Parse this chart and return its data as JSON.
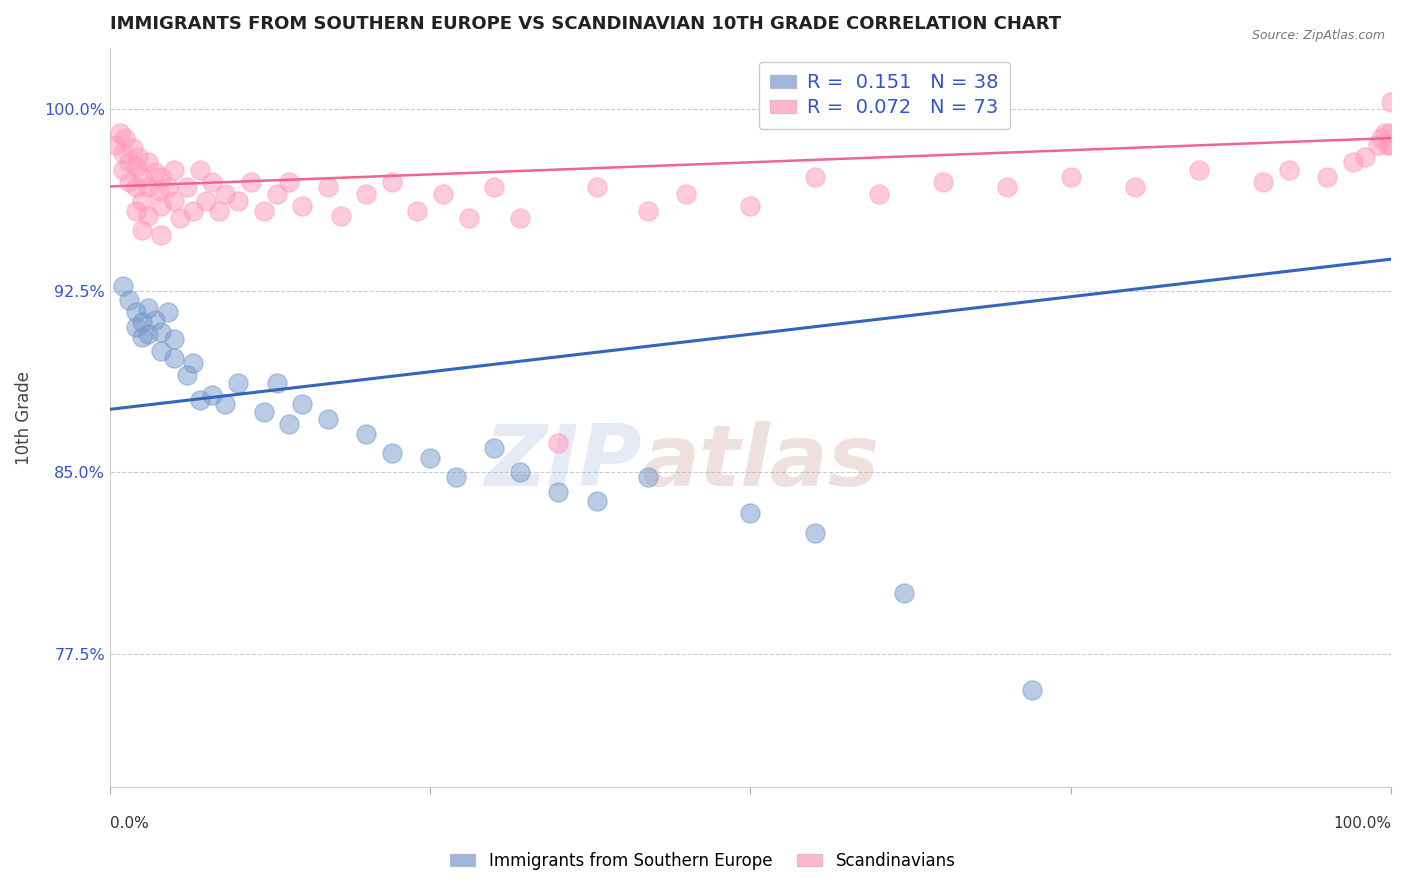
{
  "title": "IMMIGRANTS FROM SOUTHERN EUROPE VS SCANDINAVIAN 10TH GRADE CORRELATION CHART",
  "source": "Source: ZipAtlas.com",
  "ylabel": "10th Grade",
  "xlim": [
    0.0,
    1.0
  ],
  "ylim": [
    0.72,
    1.025
  ],
  "yticks": [
    0.775,
    0.85,
    0.925,
    1.0
  ],
  "ytick_labels": [
    "77.5%",
    "85.0%",
    "92.5%",
    "100.0%"
  ],
  "grid_color": "#cccccc",
  "background_color": "#ffffff",
  "title_color": "#222222",
  "title_fontsize": 13,
  "source_fontsize": 9,
  "axis_label_color": "#444444",
  "R_N_color": "#3355cc",
  "blue_color": "#7799cc",
  "pink_color": "#ff99bb",
  "blue_line_color": "#3366bb",
  "pink_line_color": "#ee6688",
  "blue_R": 0.151,
  "blue_N": 38,
  "pink_R": 0.072,
  "pink_N": 73,
  "legend_label_blue": "Immigrants from Southern Europe",
  "legend_label_pink": "Scandinavians",
  "blue_line_x0": 0.0,
  "blue_line_y0": 0.876,
  "blue_line_x1": 1.0,
  "blue_line_y1": 0.938,
  "pink_line_x0": 0.0,
  "pink_line_y0": 0.968,
  "pink_line_x1": 1.0,
  "pink_line_y1": 0.988,
  "blue_scatter_x": [
    0.01,
    0.015,
    0.02,
    0.02,
    0.025,
    0.025,
    0.03,
    0.03,
    0.035,
    0.04,
    0.04,
    0.045,
    0.05,
    0.05,
    0.06,
    0.065,
    0.07,
    0.08,
    0.09,
    0.1,
    0.12,
    0.13,
    0.14,
    0.15,
    0.17,
    0.2,
    0.22,
    0.25,
    0.27,
    0.3,
    0.32,
    0.35,
    0.38,
    0.42,
    0.5,
    0.55,
    0.62,
    0.72
  ],
  "blue_scatter_y": [
    0.927,
    0.921,
    0.916,
    0.91,
    0.912,
    0.906,
    0.918,
    0.907,
    0.913,
    0.908,
    0.9,
    0.916,
    0.905,
    0.897,
    0.89,
    0.895,
    0.88,
    0.882,
    0.878,
    0.887,
    0.875,
    0.887,
    0.87,
    0.878,
    0.872,
    0.866,
    0.858,
    0.856,
    0.848,
    0.86,
    0.85,
    0.842,
    0.838,
    0.848,
    0.833,
    0.825,
    0.8,
    0.76
  ],
  "pink_scatter_x": [
    0.005,
    0.008,
    0.01,
    0.01,
    0.012,
    0.015,
    0.015,
    0.018,
    0.02,
    0.02,
    0.02,
    0.022,
    0.025,
    0.025,
    0.025,
    0.03,
    0.03,
    0.03,
    0.035,
    0.038,
    0.04,
    0.04,
    0.04,
    0.045,
    0.05,
    0.05,
    0.055,
    0.06,
    0.065,
    0.07,
    0.075,
    0.08,
    0.085,
    0.09,
    0.1,
    0.11,
    0.12,
    0.13,
    0.14,
    0.15,
    0.17,
    0.18,
    0.2,
    0.22,
    0.24,
    0.26,
    0.28,
    0.3,
    0.32,
    0.35,
    0.38,
    0.42,
    0.45,
    0.5,
    0.55,
    0.6,
    0.65,
    0.7,
    0.75,
    0.8,
    0.85,
    0.9,
    0.92,
    0.95,
    0.97,
    0.98,
    0.99,
    0.992,
    0.995,
    0.997,
    0.999,
    0.999,
    1.0
  ],
  "pink_scatter_y": [
    0.985,
    0.99,
    0.982,
    0.975,
    0.988,
    0.978,
    0.97,
    0.984,
    0.976,
    0.968,
    0.958,
    0.98,
    0.972,
    0.962,
    0.95,
    0.978,
    0.968,
    0.956,
    0.974,
    0.966,
    0.972,
    0.96,
    0.948,
    0.968,
    0.975,
    0.962,
    0.955,
    0.968,
    0.958,
    0.975,
    0.962,
    0.97,
    0.958,
    0.965,
    0.962,
    0.97,
    0.958,
    0.965,
    0.97,
    0.96,
    0.968,
    0.956,
    0.965,
    0.97,
    0.958,
    0.965,
    0.955,
    0.968,
    0.955,
    0.862,
    0.968,
    0.958,
    0.965,
    0.96,
    0.972,
    0.965,
    0.97,
    0.968,
    0.972,
    0.968,
    0.975,
    0.97,
    0.975,
    0.972,
    0.978,
    0.98,
    0.985,
    0.988,
    0.99,
    0.985,
    0.99,
    0.985,
    1.003
  ],
  "watermark_text": "ZIP",
  "watermark_text2": "atlas",
  "watermark_color1": "#aabbdd",
  "watermark_color2": "#cc9999",
  "watermark_alpha": 0.3
}
